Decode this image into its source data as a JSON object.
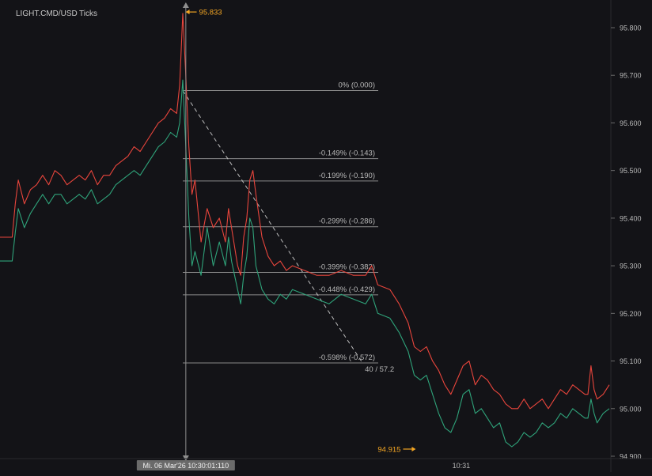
{
  "header": {
    "symbol": "LIGHT.CMD/USD",
    "interval": "Ticks"
  },
  "chart_data": {
    "type": "line",
    "ylim": [
      94.9,
      95.85
    ],
    "y_ticks": [
      "95.800",
      "95.700",
      "95.600",
      "95.500",
      "95.400",
      "95.300",
      "95.200",
      "95.100",
      "95.000",
      "94.900"
    ],
    "x_ticks": [
      {
        "label": "10:31",
        "t": 0.757
      }
    ],
    "crosshair": {
      "label": "Mi. 06 Mar'26  10:30:01:110",
      "t": 0.305
    },
    "series": [
      {
        "key": "ask",
        "color": "#e8453c",
        "points": [
          [
            0,
            95.36
          ],
          [
            0.02,
            95.36
          ],
          [
            0.025,
            95.43
          ],
          [
            0.03,
            95.48
          ],
          [
            0.04,
            95.43
          ],
          [
            0.05,
            95.46
          ],
          [
            0.06,
            95.47
          ],
          [
            0.07,
            95.49
          ],
          [
            0.08,
            95.47
          ],
          [
            0.09,
            95.5
          ],
          [
            0.1,
            95.49
          ],
          [
            0.11,
            95.47
          ],
          [
            0.12,
            95.48
          ],
          [
            0.13,
            95.49
          ],
          [
            0.14,
            95.48
          ],
          [
            0.15,
            95.5
          ],
          [
            0.16,
            95.47
          ],
          [
            0.17,
            95.49
          ],
          [
            0.18,
            95.49
          ],
          [
            0.19,
            95.51
          ],
          [
            0.2,
            95.52
          ],
          [
            0.21,
            95.53
          ],
          [
            0.22,
            95.55
          ],
          [
            0.23,
            95.54
          ],
          [
            0.24,
            95.56
          ],
          [
            0.25,
            95.58
          ],
          [
            0.26,
            95.6
          ],
          [
            0.27,
            95.61
          ],
          [
            0.28,
            95.63
          ],
          [
            0.29,
            95.62
          ],
          [
            0.295,
            95.68
          ],
          [
            0.3,
            95.83
          ],
          [
            0.305,
            95.7
          ],
          [
            0.31,
            95.55
          ],
          [
            0.315,
            95.45
          ],
          [
            0.32,
            95.48
          ],
          [
            0.33,
            95.35
          ],
          [
            0.34,
            95.42
          ],
          [
            0.35,
            95.38
          ],
          [
            0.36,
            95.4
          ],
          [
            0.37,
            95.35
          ],
          [
            0.375,
            95.42
          ],
          [
            0.38,
            95.38
          ],
          [
            0.39,
            95.3
          ],
          [
            0.395,
            95.28
          ],
          [
            0.4,
            95.36
          ],
          [
            0.405,
            95.4
          ],
          [
            0.41,
            95.48
          ],
          [
            0.415,
            95.5
          ],
          [
            0.42,
            95.45
          ],
          [
            0.43,
            95.36
          ],
          [
            0.44,
            95.32
          ],
          [
            0.45,
            95.3
          ],
          [
            0.46,
            95.31
          ],
          [
            0.47,
            95.29
          ],
          [
            0.48,
            95.3
          ],
          [
            0.5,
            95.29
          ],
          [
            0.52,
            95.28
          ],
          [
            0.54,
            95.28
          ],
          [
            0.56,
            95.29
          ],
          [
            0.58,
            95.28
          ],
          [
            0.6,
            95.28
          ],
          [
            0.61,
            95.3
          ],
          [
            0.62,
            95.26
          ],
          [
            0.64,
            95.25
          ],
          [
            0.655,
            95.22
          ],
          [
            0.67,
            95.18
          ],
          [
            0.68,
            95.13
          ],
          [
            0.69,
            95.12
          ],
          [
            0.7,
            95.13
          ],
          [
            0.71,
            95.1
          ],
          [
            0.72,
            95.08
          ],
          [
            0.73,
            95.05
          ],
          [
            0.74,
            95.03
          ],
          [
            0.75,
            95.06
          ],
          [
            0.76,
            95.09
          ],
          [
            0.77,
            95.1
          ],
          [
            0.78,
            95.05
          ],
          [
            0.79,
            95.07
          ],
          [
            0.8,
            95.06
          ],
          [
            0.81,
            95.04
          ],
          [
            0.82,
            95.03
          ],
          [
            0.83,
            95.01
          ],
          [
            0.84,
            95.0
          ],
          [
            0.85,
            95.0
          ],
          [
            0.86,
            95.02
          ],
          [
            0.87,
            95.0
          ],
          [
            0.88,
            95.01
          ],
          [
            0.89,
            95.02
          ],
          [
            0.9,
            95.0
          ],
          [
            0.91,
            95.02
          ],
          [
            0.92,
            95.04
          ],
          [
            0.93,
            95.03
          ],
          [
            0.94,
            95.05
          ],
          [
            0.95,
            95.04
          ],
          [
            0.96,
            95.03
          ],
          [
            0.965,
            95.03
          ],
          [
            0.97,
            95.09
          ],
          [
            0.975,
            95.04
          ],
          [
            0.98,
            95.02
          ],
          [
            0.99,
            95.03
          ],
          [
            1.0,
            95.05
          ]
        ]
      },
      {
        "key": "bid",
        "color": "#2fa37a",
        "points": [
          [
            0,
            95.31
          ],
          [
            0.02,
            95.31
          ],
          [
            0.025,
            95.37
          ],
          [
            0.03,
            95.42
          ],
          [
            0.04,
            95.38
          ],
          [
            0.05,
            95.41
          ],
          [
            0.06,
            95.43
          ],
          [
            0.07,
            95.45
          ],
          [
            0.08,
            95.43
          ],
          [
            0.09,
            95.45
          ],
          [
            0.1,
            95.45
          ],
          [
            0.11,
            95.43
          ],
          [
            0.12,
            95.44
          ],
          [
            0.13,
            95.45
          ],
          [
            0.14,
            95.44
          ],
          [
            0.15,
            95.46
          ],
          [
            0.16,
            95.43
          ],
          [
            0.17,
            95.44
          ],
          [
            0.18,
            95.45
          ],
          [
            0.19,
            95.47
          ],
          [
            0.2,
            95.48
          ],
          [
            0.21,
            95.49
          ],
          [
            0.22,
            95.5
          ],
          [
            0.23,
            95.49
          ],
          [
            0.24,
            95.51
          ],
          [
            0.25,
            95.53
          ],
          [
            0.26,
            95.55
          ],
          [
            0.27,
            95.56
          ],
          [
            0.28,
            95.58
          ],
          [
            0.29,
            95.57
          ],
          [
            0.295,
            95.6
          ],
          [
            0.3,
            95.69
          ],
          [
            0.305,
            95.55
          ],
          [
            0.31,
            95.4
          ],
          [
            0.315,
            95.3
          ],
          [
            0.32,
            95.33
          ],
          [
            0.33,
            95.28
          ],
          [
            0.34,
            95.38
          ],
          [
            0.35,
            95.3
          ],
          [
            0.36,
            95.35
          ],
          [
            0.37,
            95.3
          ],
          [
            0.375,
            95.36
          ],
          [
            0.38,
            95.31
          ],
          [
            0.39,
            95.25
          ],
          [
            0.395,
            95.22
          ],
          [
            0.4,
            95.28
          ],
          [
            0.405,
            95.32
          ],
          [
            0.41,
            95.4
          ],
          [
            0.415,
            95.38
          ],
          [
            0.42,
            95.3
          ],
          [
            0.43,
            95.25
          ],
          [
            0.44,
            95.23
          ],
          [
            0.45,
            95.22
          ],
          [
            0.46,
            95.24
          ],
          [
            0.47,
            95.23
          ],
          [
            0.48,
            95.25
          ],
          [
            0.5,
            95.24
          ],
          [
            0.52,
            95.23
          ],
          [
            0.54,
            95.22
          ],
          [
            0.56,
            95.24
          ],
          [
            0.58,
            95.23
          ],
          [
            0.6,
            95.22
          ],
          [
            0.61,
            95.24
          ],
          [
            0.62,
            95.2
          ],
          [
            0.64,
            95.19
          ],
          [
            0.655,
            95.16
          ],
          [
            0.67,
            95.12
          ],
          [
            0.68,
            95.07
          ],
          [
            0.69,
            95.06
          ],
          [
            0.7,
            95.07
          ],
          [
            0.71,
            95.03
          ],
          [
            0.72,
            94.99
          ],
          [
            0.73,
            94.96
          ],
          [
            0.74,
            94.95
          ],
          [
            0.75,
            94.98
          ],
          [
            0.76,
            95.03
          ],
          [
            0.77,
            95.04
          ],
          [
            0.78,
            94.99
          ],
          [
            0.79,
            95.0
          ],
          [
            0.8,
            94.98
          ],
          [
            0.81,
            94.96
          ],
          [
            0.82,
            94.97
          ],
          [
            0.83,
            94.93
          ],
          [
            0.84,
            94.92
          ],
          [
            0.85,
            94.93
          ],
          [
            0.86,
            94.95
          ],
          [
            0.87,
            94.94
          ],
          [
            0.88,
            94.95
          ],
          [
            0.89,
            94.97
          ],
          [
            0.9,
            94.96
          ],
          [
            0.91,
            94.97
          ],
          [
            0.92,
            94.99
          ],
          [
            0.93,
            94.98
          ],
          [
            0.94,
            95.0
          ],
          [
            0.95,
            94.99
          ],
          [
            0.96,
            94.98
          ],
          [
            0.965,
            94.98
          ],
          [
            0.97,
            95.02
          ],
          [
            0.975,
            94.99
          ],
          [
            0.98,
            94.97
          ],
          [
            0.99,
            94.99
          ],
          [
            1.0,
            95.0
          ]
        ]
      }
    ],
    "fibonacci": {
      "levels": [
        {
          "label": "0% (0.000)",
          "y": 95.668
        },
        {
          "label": "-0.149% (-0.143)",
          "y": 95.525
        },
        {
          "label": "-0.199% (-0.190)",
          "y": 95.478
        },
        {
          "label": "-0.299% (-0.286)",
          "y": 95.382
        },
        {
          "label": "-0.399% (-0.382)",
          "y": 95.286
        },
        {
          "label": "-0.448% (-0.429)",
          "y": 95.239
        },
        {
          "label": "-0.598% (-0.572)",
          "y": 95.096
        }
      ],
      "trend": {
        "t1": 0.3,
        "y1": 95.668,
        "t2": 0.595,
        "y2": 95.096
      },
      "readout": "40 / 57.2"
    },
    "markers": [
      {
        "label": "95.833",
        "t": 0.302,
        "y": 95.833,
        "side": "right"
      },
      {
        "label": "94.915",
        "t": 0.685,
        "y": 94.915,
        "side": "left"
      }
    ]
  },
  "colors": {
    "background": "#131317",
    "grid_line": "#8a8a8a",
    "marker": "#f4a623",
    "axis_text": "#b8b8b8"
  }
}
